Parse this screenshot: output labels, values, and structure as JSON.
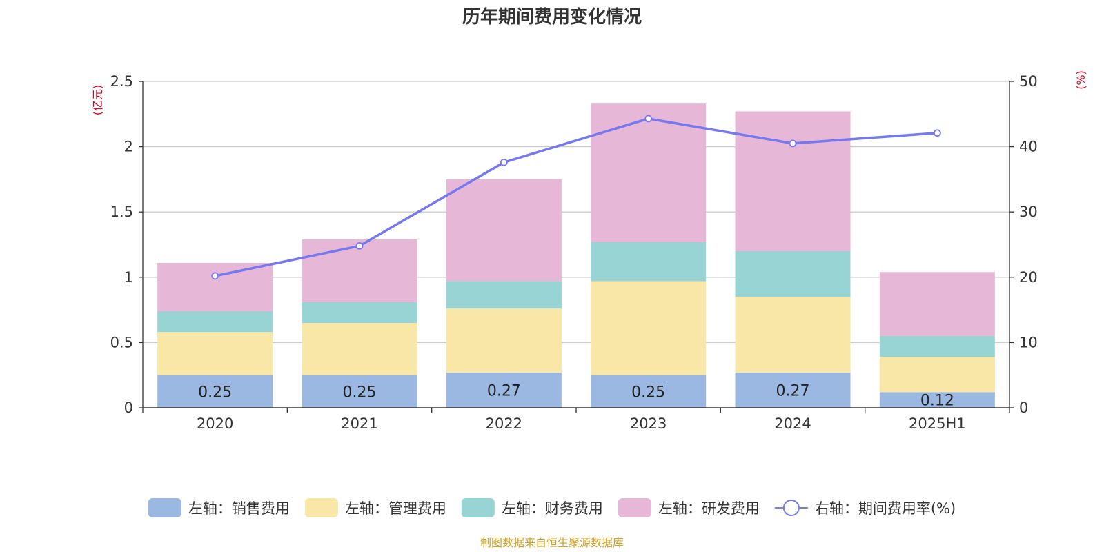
{
  "chart_data": {
    "type": "bar",
    "title": "历年期间费用变化情况",
    "categories": [
      "2020",
      "2021",
      "2022",
      "2023",
      "2024",
      "2025H1"
    ],
    "y_left": {
      "unit": "(亿元)",
      "range": [
        0,
        2.5
      ],
      "ticks": [
        0,
        0.5,
        1,
        1.5,
        2,
        2.5
      ],
      "tick_labels": [
        "0",
        "0.5",
        "1",
        "1.5",
        "2",
        "2.5"
      ]
    },
    "y_right": {
      "unit": "(%)",
      "range": [
        0,
        50
      ],
      "ticks": [
        0,
        10,
        20,
        30,
        40,
        50
      ],
      "tick_labels": [
        "0",
        "10",
        "20",
        "30",
        "40",
        "50"
      ]
    },
    "series": [
      {
        "name": "左轴：销售费用",
        "type": "bar",
        "axis": "left",
        "color": "#9bb8e2",
        "values": [
          0.25,
          0.25,
          0.27,
          0.25,
          0.27,
          0.12
        ],
        "data_labels": [
          "0.25",
          "0.25",
          "0.27",
          "0.25",
          "0.27",
          "0.12"
        ]
      },
      {
        "name": "左轴：管理费用",
        "type": "bar",
        "axis": "left",
        "color": "#f8e7a7",
        "values": [
          0.33,
          0.4,
          0.49,
          0.72,
          0.58,
          0.27
        ]
      },
      {
        "name": "左轴：财务费用",
        "type": "bar",
        "axis": "left",
        "color": "#98d4d4",
        "values": [
          0.16,
          0.16,
          0.21,
          0.3,
          0.35,
          0.16
        ]
      },
      {
        "name": "左轴：研发费用",
        "type": "bar",
        "axis": "left",
        "color": "#e7b7d8",
        "values": [
          0.37,
          0.48,
          0.78,
          1.06,
          1.07,
          0.49
        ]
      },
      {
        "name": "右轴：期间费用率(%)",
        "type": "line",
        "axis": "right",
        "color": "#7578ee",
        "values": [
          20.2,
          24.8,
          37.6,
          44.3,
          40.5,
          42.1
        ]
      }
    ],
    "grid": true,
    "legend_position": "bottom",
    "source": "制图数据来自恒生聚源数据库",
    "colors": {
      "title": "#333333",
      "axis_unit": "#e0001b",
      "axis_text": "#333333",
      "grid": "#cccccc",
      "source": "#d4a020"
    }
  }
}
